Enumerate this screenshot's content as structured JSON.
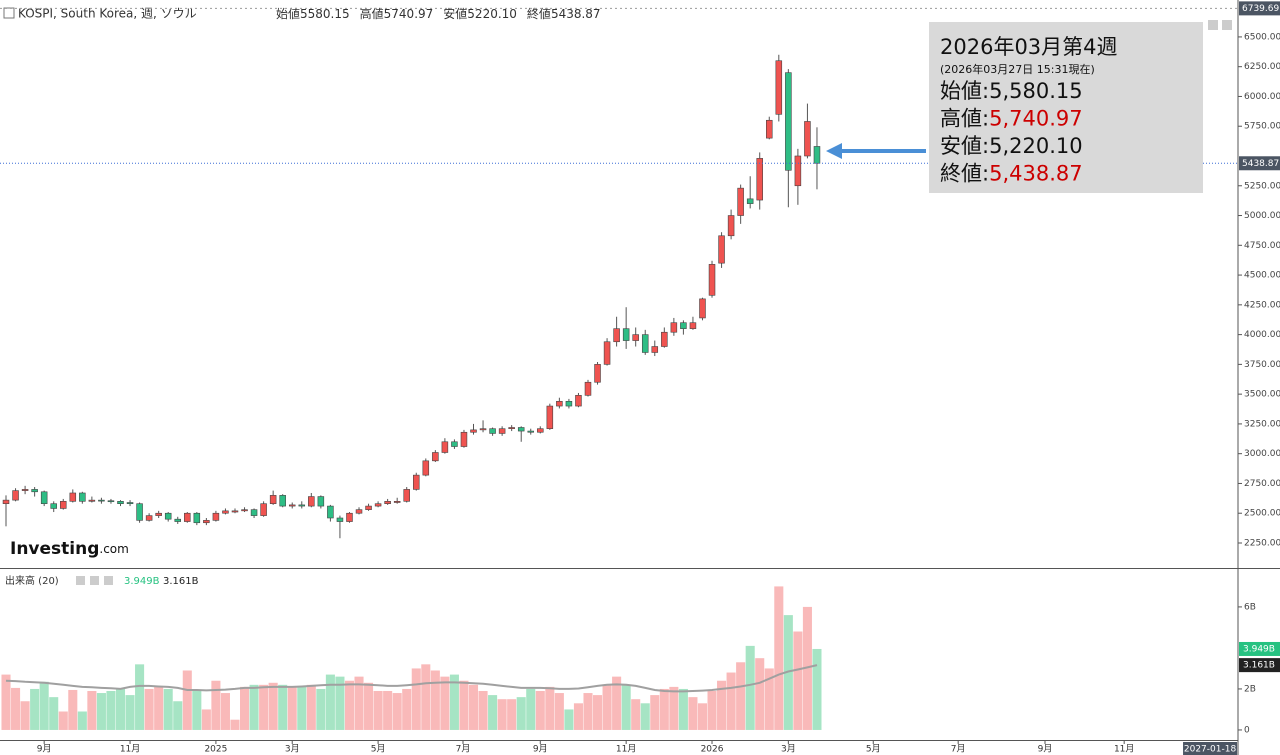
{
  "header": {
    "symbol": "KOSPI, South Korea, 週, ソウル",
    "ohlc": [
      {
        "label": "始値",
        "value": "5580.15"
      },
      {
        "label": "高値",
        "value": "5740.97"
      },
      {
        "label": "安値",
        "value": "5220.10"
      },
      {
        "label": "終値",
        "value": "5438.87"
      }
    ]
  },
  "info_box": {
    "title": "2026年03月第4週",
    "subtitle": "(2026年03月27日 15:31現在)",
    "rows": [
      {
        "label": "始値:",
        "value": "5,580.15",
        "color": "#111111"
      },
      {
        "label": "高値:",
        "value": "5,740.97",
        "color": "#cc0000"
      },
      {
        "label": "安値:",
        "value": "5,220.10",
        "color": "#111111"
      },
      {
        "label": "終値:",
        "value": "5,438.87",
        "color": "#cc0000"
      }
    ]
  },
  "logo": {
    "brand": "Investing",
    "suffix": ".com"
  },
  "chart_data": [
    {
      "type": "candlestick",
      "up_color": "#ef5350",
      "down_color": "#2ebd85",
      "categories": [
        null,
        null,
        null,
        null,
        null,
        null,
        null,
        null,
        null,
        null,
        null,
        null,
        null,
        null,
        null,
        null,
        null,
        null,
        null,
        null,
        null,
        null,
        null,
        null,
        null,
        null,
        null,
        null,
        null,
        null,
        null,
        null,
        null,
        null,
        null,
        null,
        null,
        null,
        null,
        null,
        null,
        null,
        null,
        null,
        null,
        null,
        null,
        null,
        null,
        null,
        null,
        null,
        null,
        null,
        null,
        null,
        null,
        null,
        null,
        null,
        null,
        null,
        null,
        null,
        null,
        null,
        null,
        null,
        null,
        null,
        null,
        null,
        null,
        null,
        null,
        null,
        null,
        null,
        null,
        null,
        null,
        null,
        null,
        null,
        null,
        null
      ],
      "open": [
        2580,
        2610,
        2690,
        2700,
        2680,
        2580,
        2540,
        2600,
        2670,
        2600,
        2610,
        2605,
        2600,
        2590,
        2580,
        2440,
        2480,
        2500,
        2450,
        2430,
        2500,
        2420,
        2440,
        2500,
        2510,
        2520,
        2530,
        2480,
        2580,
        2650,
        2560,
        2570,
        2560,
        2640,
        2560,
        2460,
        2430,
        2500,
        2530,
        2560,
        2580,
        2590,
        2600,
        2700,
        2820,
        2940,
        3010,
        3100,
        3060,
        3180,
        3200,
        3210,
        3170,
        3210,
        3220,
        3190,
        3180,
        3210,
        3400,
        3440,
        3400,
        3490,
        3600,
        3750,
        3940,
        4050,
        3950,
        4000,
        3850,
        3900,
        4020,
        4100,
        4050,
        4140,
        4330,
        4600,
        4830,
        5000,
        5140,
        5130,
        5650,
        5850,
        6200,
        5250,
        5500,
        5580.15
      ],
      "high": [
        2650,
        2710,
        2730,
        2720,
        2690,
        2600,
        2620,
        2700,
        2680,
        2640,
        2630,
        2620,
        2610,
        2610,
        2590,
        2500,
        2520,
        2510,
        2470,
        2510,
        2510,
        2460,
        2520,
        2540,
        2540,
        2550,
        2540,
        2600,
        2690,
        2660,
        2590,
        2600,
        2670,
        2650,
        2570,
        2480,
        2510,
        2550,
        2580,
        2600,
        2620,
        2630,
        2720,
        2840,
        2960,
        3030,
        3130,
        3120,
        3200,
        3250,
        3280,
        3220,
        3230,
        3240,
        3230,
        3210,
        3230,
        3420,
        3470,
        3460,
        3510,
        3620,
        3770,
        3970,
        4150,
        4230,
        4060,
        4040,
        3950,
        4060,
        4140,
        4120,
        4150,
        4310,
        4620,
        4860,
        5050,
        5260,
        5330,
        5530,
        5830,
        6350,
        6230,
        5560,
        5940,
        5740.97
      ],
      "low": [
        2390,
        2600,
        2660,
        2640,
        2560,
        2510,
        2530,
        2590,
        2580,
        2590,
        2580,
        2580,
        2560,
        2560,
        2420,
        2430,
        2460,
        2430,
        2410,
        2420,
        2400,
        2400,
        2430,
        2490,
        2500,
        2510,
        2460,
        2470,
        2570,
        2550,
        2540,
        2540,
        2550,
        2540,
        2430,
        2290,
        2420,
        2490,
        2520,
        2550,
        2570,
        2580,
        2590,
        2690,
        2810,
        2930,
        3000,
        3040,
        3050,
        3160,
        3180,
        3150,
        3150,
        3190,
        3100,
        3160,
        3170,
        3200,
        3380,
        3380,
        3390,
        3480,
        3580,
        3740,
        3900,
        3880,
        3900,
        3830,
        3820,
        3890,
        3990,
        4000,
        4040,
        4120,
        4310,
        4560,
        4800,
        4930,
        5060,
        5050,
        5640,
        5790,
        5070,
        5090,
        5480,
        5220.1
      ],
      "close": [
        2610,
        2690,
        2700,
        2680,
        2580,
        2540,
        2600,
        2670,
        2600,
        2610,
        2605,
        2600,
        2580,
        2580,
        2440,
        2480,
        2500,
        2450,
        2430,
        2500,
        2420,
        2440,
        2500,
        2520,
        2520,
        2530,
        2480,
        2580,
        2650,
        2560,
        2570,
        2560,
        2640,
        2560,
        2460,
        2430,
        2500,
        2530,
        2560,
        2580,
        2600,
        2600,
        2700,
        2820,
        2940,
        3010,
        3100,
        3060,
        3180,
        3200,
        3210,
        3170,
        3210,
        3220,
        3190,
        3180,
        3210,
        3400,
        3440,
        3400,
        3490,
        3600,
        3750,
        3940,
        4050,
        3950,
        4000,
        3850,
        3900,
        4020,
        4100,
        4050,
        4100,
        4300,
        4590,
        4830,
        5000,
        5230,
        5100,
        5480,
        5800,
        6300,
        5380,
        5500,
        5790,
        5438.87
      ],
      "last_label": "5438.87",
      "last_line_color": "#3d6fd6",
      "crosshair": {
        "y": 6739.69,
        "y_label": "6739.69",
        "x": 126.2,
        "x_label": "2027-01-18"
      },
      "xlim": [
        -0.63,
        129.13
      ],
      "ylim": [
        2040,
        6810
      ],
      "xticks": [
        {
          "value": 4,
          "label": "9月"
        },
        {
          "value": 13,
          "label": "11月"
        },
        {
          "value": 22,
          "label": "2025"
        },
        {
          "value": 30,
          "label": "3月"
        },
        {
          "value": 39,
          "label": "5月"
        },
        {
          "value": 47.9,
          "label": "7月"
        },
        {
          "value": 56,
          "label": "9月"
        },
        {
          "value": 65,
          "label": "11月"
        },
        {
          "value": 74,
          "label": "2026"
        },
        {
          "value": 82,
          "label": "3月"
        },
        {
          "value": 90.9,
          "label": "5月"
        },
        {
          "value": 99.8,
          "label": "7月"
        },
        {
          "value": 108.9,
          "label": "9月"
        },
        {
          "value": 117.2,
          "label": "11月"
        }
      ],
      "yticks": [
        {
          "value": 2250,
          "label": "2250.00"
        },
        {
          "value": 2500,
          "label": "2500.00"
        },
        {
          "value": 2750,
          "label": "2750.00"
        },
        {
          "value": 3000,
          "label": "3000.00"
        },
        {
          "value": 3250,
          "label": "3250.00"
        },
        {
          "value": 3500,
          "label": "3500.00"
        },
        {
          "value": 3750,
          "label": "3750.00"
        },
        {
          "value": 4000,
          "label": "4000.00"
        },
        {
          "value": 4250,
          "label": "4250.00"
        },
        {
          "value": 4500,
          "label": "4500.00"
        },
        {
          "value": 4750,
          "label": "4750.00"
        },
        {
          "value": 5000,
          "label": "5000.00"
        },
        {
          "value": 5250,
          "label": "5250.00"
        },
        {
          "value": 5750,
          "label": "5750.00"
        },
        {
          "value": 6000,
          "label": "6000.00"
        },
        {
          "value": 6250,
          "label": "6250.00"
        },
        {
          "value": 6500,
          "label": "6500.00"
        }
      ],
      "grid": false
    },
    {
      "type": "bar",
      "title": "出来高 (20)",
      "up_color": "#f9b9b9",
      "down_color": "#a6e4c4",
      "values": [
        2.7,
        2.05,
        1.4,
        2.0,
        2.35,
        1.6,
        0.9,
        1.95,
        0.9,
        1.9,
        1.8,
        1.9,
        2.0,
        1.7,
        3.2,
        2.0,
        2.1,
        2.0,
        1.4,
        2.9,
        1.9,
        1.0,
        2.4,
        1.8,
        0.5,
        2.1,
        2.2,
        2.2,
        2.3,
        2.2,
        2.1,
        2.1,
        2.2,
        2.0,
        2.7,
        2.6,
        2.4,
        2.6,
        2.3,
        1.9,
        1.9,
        1.8,
        2.0,
        3.0,
        3.2,
        2.9,
        2.6,
        2.7,
        2.4,
        2.2,
        1.9,
        1.7,
        1.5,
        1.5,
        1.6,
        2.0,
        1.9,
        2.1,
        1.8,
        1.0,
        1.3,
        1.8,
        1.7,
        2.2,
        2.6,
        2.2,
        1.5,
        1.3,
        1.7,
        2.0,
        2.1,
        2.0,
        1.6,
        1.3,
        1.9,
        2.4,
        2.8,
        3.3,
        4.1,
        3.5,
        3.0,
        7.0,
        5.6,
        4.8,
        6.0,
        3.949
      ],
      "ma": {
        "color": "#a0a0a0",
        "values": [
          2.4,
          2.38,
          2.35,
          2.33,
          2.3,
          2.25,
          2.2,
          2.15,
          2.1,
          2.08,
          2.05,
          2.03,
          2.0,
          2.1,
          2.15,
          2.15,
          2.12,
          2.1,
          2.05,
          1.95,
          1.95,
          1.93,
          1.95,
          1.97,
          2.0,
          2.05,
          2.05,
          2.08,
          2.1,
          2.1,
          2.1,
          2.12,
          2.15,
          2.18,
          2.2,
          2.2,
          2.22,
          2.22,
          2.2,
          2.18,
          2.15,
          2.15,
          2.18,
          2.22,
          2.28,
          2.3,
          2.32,
          2.32,
          2.3,
          2.28,
          2.25,
          2.2,
          2.15,
          2.1,
          2.05,
          2.05,
          2.05,
          2.03,
          2.0,
          2.0,
          2.02,
          2.08,
          2.15,
          2.2,
          2.22,
          2.2,
          2.15,
          2.05,
          1.95,
          1.9,
          1.88,
          1.88,
          1.9,
          1.92,
          1.95,
          2.0,
          2.05,
          2.12,
          2.2,
          2.3,
          2.5,
          2.7,
          2.85,
          2.95,
          3.05,
          3.161
        ]
      },
      "value_label": "3.949B",
      "value_label_color": "#26c281",
      "ma_label": "3.161B",
      "ylim": [
        -0.49,
        7.8
      ],
      "yticks": [
        0,
        {
          "value": 2,
          "label": "2B"
        },
        {
          "value": 6,
          "label": "6B"
        }
      ],
      "grid": false
    }
  ]
}
